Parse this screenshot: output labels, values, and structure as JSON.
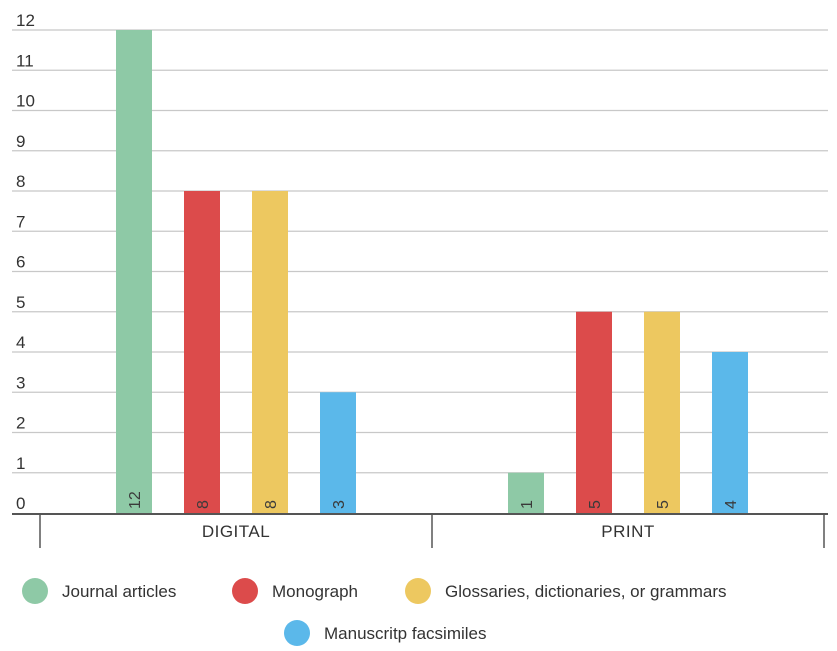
{
  "chart_data": {
    "type": "bar",
    "categories": [
      "DIGITAL",
      "PRINT"
    ],
    "series": [
      {
        "name": "Journal articles",
        "values": [
          12,
          1
        ],
        "color": "#8ec9a6"
      },
      {
        "name": "Monograph",
        "values": [
          8,
          5
        ],
        "color": "#dc4b4b"
      },
      {
        "name": "Glossaries, dictionaries, or grammars",
        "values": [
          8,
          5
        ],
        "color": "#edc860"
      },
      {
        "name": "Manuscritp facsimiles",
        "values": [
          3,
          4
        ],
        "color": "#5bb8ea"
      }
    ],
    "y_ticks": [
      "0",
      "1",
      "2",
      "3",
      "4",
      "5",
      "6",
      "7",
      "8",
      "9",
      "10",
      "11",
      "12"
    ],
    "ylim": [
      0,
      12
    ],
    "grid": true,
    "data_labels": true,
    "legend_position": "bottom"
  }
}
